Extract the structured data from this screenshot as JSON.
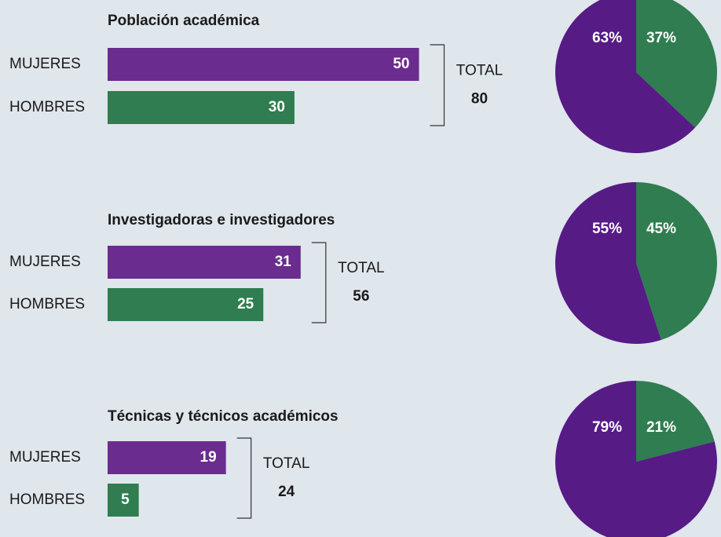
{
  "chart_data": [
    {
      "type": "bar",
      "title": "Población académica",
      "categories": [
        "MUJERES",
        "HOMBRES"
      ],
      "values": [
        50,
        30
      ],
      "colors": [
        "#6a2c8e",
        "#2f7d50"
      ],
      "total_label": "TOTAL",
      "total": 80
    },
    {
      "type": "pie",
      "values": [
        37,
        63
      ],
      "value_labels": [
        "37%",
        "63%"
      ],
      "colors": [
        "#2f7d50",
        "#561b85"
      ]
    },
    {
      "type": "bar",
      "title": "Investigadoras e investigadores",
      "categories": [
        "MUJERES",
        "HOMBRES"
      ],
      "values": [
        31,
        25
      ],
      "colors": [
        "#6a2c8e",
        "#2f7d50"
      ],
      "total_label": "TOTAL",
      "total": 56
    },
    {
      "type": "pie",
      "values": [
        45,
        55
      ],
      "value_labels": [
        "45%",
        "55%"
      ],
      "colors": [
        "#2f7d50",
        "#561b85"
      ]
    },
    {
      "type": "bar",
      "title": "Técnicas y técnicos académicos",
      "categories": [
        "MUJERES",
        "HOMBRES"
      ],
      "values": [
        19,
        5
      ],
      "colors": [
        "#6a2c8e",
        "#2f7d50"
      ],
      "total_label": "TOTAL",
      "total": 24
    },
    {
      "type": "pie",
      "values": [
        21,
        79
      ],
      "value_labels": [
        "21%",
        "79%"
      ],
      "colors": [
        "#2f7d50",
        "#561b85"
      ]
    }
  ]
}
